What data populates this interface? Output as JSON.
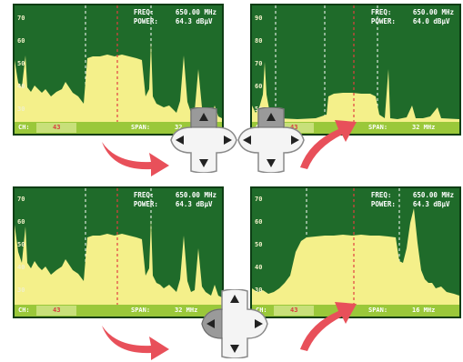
{
  "screens": [
    {
      "id": "top-left",
      "freq_label": "FREQ:",
      "freq_value": "650.00  MHz",
      "power_label": "POWER:",
      "power_value": "64.3  dBµV",
      "ch_label": "CH:",
      "ch_value": "43",
      "span_label": "SPAN:",
      "span_value": "32",
      "ticks": [
        "70",
        "60",
        "50",
        "40",
        "30"
      ]
    },
    {
      "id": "top-right",
      "freq_label": "FREQ:",
      "freq_value": "650.00  MHz",
      "power_label": "POWER:",
      "power_value": "64.0  dBµV",
      "ch_label": "CH:",
      "ch_value": "43",
      "span_label": "SPAN:",
      "span_value": "32  MHz",
      "ticks": [
        "90",
        "80",
        "70",
        "60",
        "50"
      ]
    },
    {
      "id": "bottom-left",
      "freq_label": "FREQ:",
      "freq_value": "650.00  MHz",
      "power_label": "POWER:",
      "power_value": "64.3  dBµV",
      "ch_label": "CH:",
      "ch_value": "43",
      "span_label": "SPAN:",
      "span_value": "32  MHz",
      "ticks": [
        "70",
        "60",
        "50",
        "40",
        "30"
      ]
    },
    {
      "id": "bottom-right",
      "freq_label": "FREQ:",
      "freq_value": "650.00  MHz",
      "power_label": "POWER:",
      "power_value": "64.3  dBµV",
      "ch_label": "CH:",
      "ch_value": "43",
      "span_label": "SPAN:",
      "span_value": "16  MHz",
      "ticks": [
        "70",
        "60",
        "50",
        "40",
        "30"
      ]
    }
  ],
  "colors": {
    "screen_bg": "#1f6b2a",
    "spectrum_fill": "#f4f08a",
    "status_bar": "#9ac83a",
    "marker_line": "#e04040",
    "arrow": "#e8505a"
  },
  "icons": [
    "dpad-up-pressed",
    "dpad-down-pressed",
    "dpad-left-pressed",
    "dpad-right-pressed",
    "curved-arrow"
  ]
}
